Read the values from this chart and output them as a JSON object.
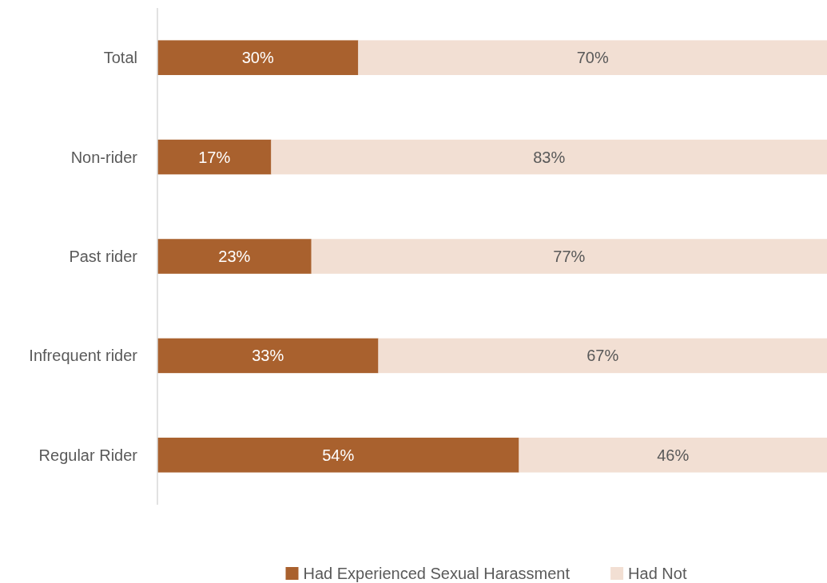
{
  "chart_data": {
    "type": "bar",
    "orientation": "horizontal",
    "stacked": true,
    "categories": [
      "Total",
      "Non-rider",
      "Past rider",
      "Infrequent rider",
      "Regular Rider"
    ],
    "series": [
      {
        "name": "Had Experienced Sexual Harassment",
        "color": "#a9612e",
        "values": [
          30,
          17,
          23,
          33,
          54
        ],
        "value_labels": [
          "30%",
          "17%",
          "23%",
          "33%",
          "54%"
        ]
      },
      {
        "name": "Had Not",
        "color": "#f2dfd3",
        "values": [
          70,
          83,
          77,
          67,
          46
        ],
        "value_labels": [
          "70%",
          "83%",
          "77%",
          "67%",
          "46%"
        ]
      }
    ],
    "legend": "bottom",
    "tick_labels": "y"
  }
}
